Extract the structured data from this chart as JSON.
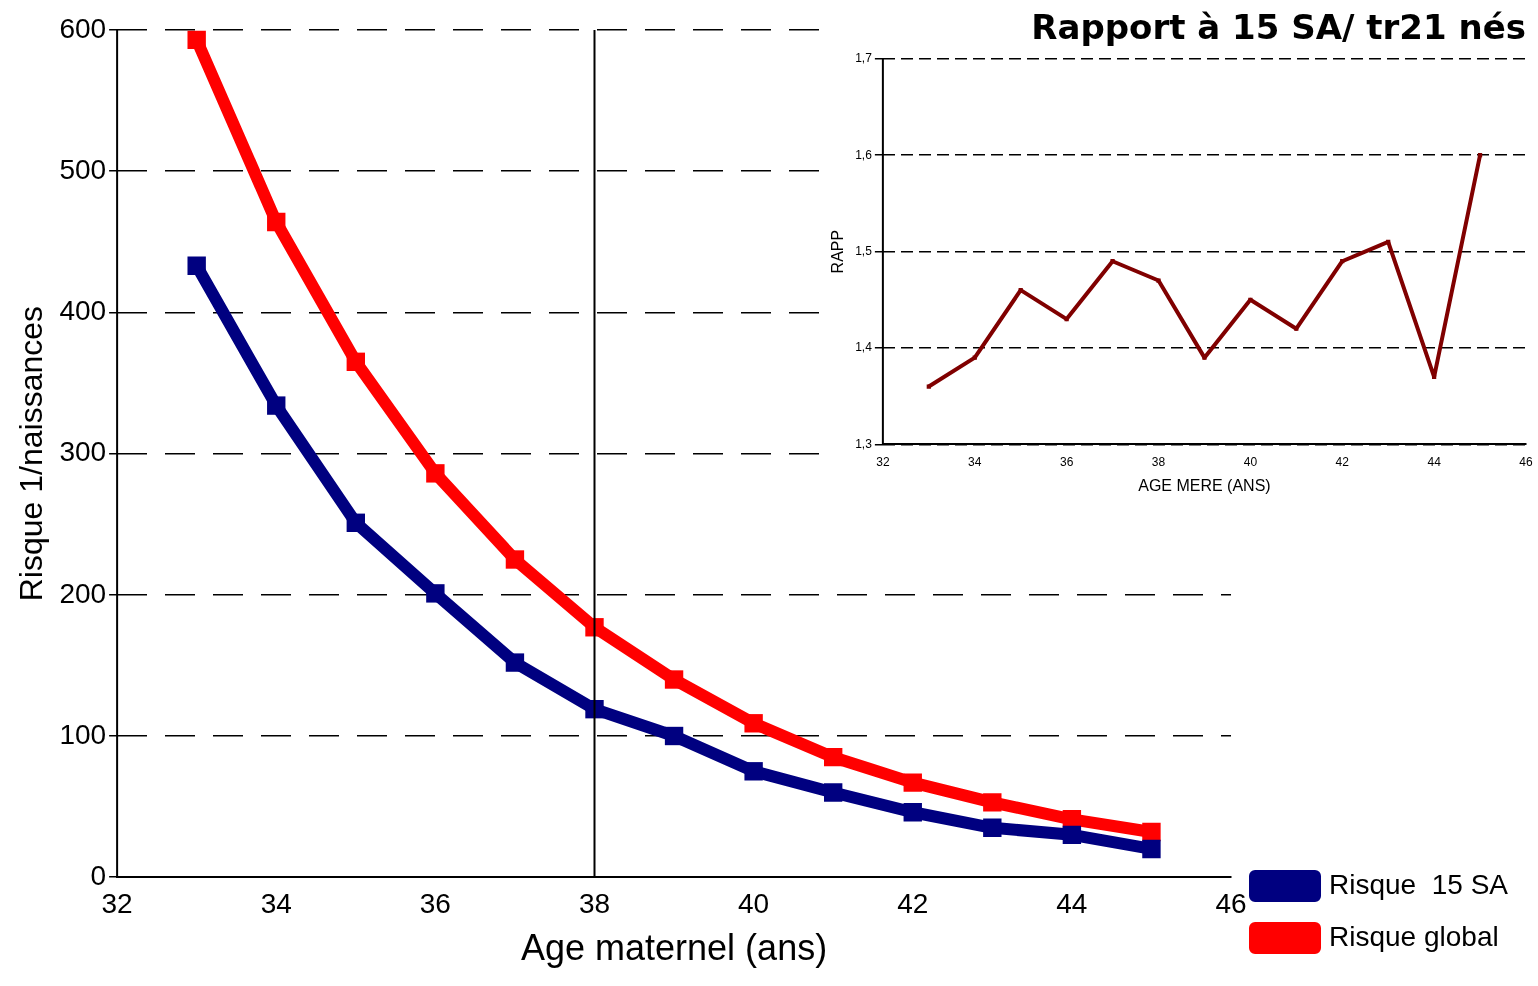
{
  "chart_data": [
    {
      "type": "line",
      "xlabel": "Age maternel (ans)",
      "ylabel": "Risque 1/naissances",
      "x": [
        33,
        34,
        35,
        36,
        37,
        38,
        39,
        40,
        41,
        42,
        43,
        44,
        45
      ],
      "series": [
        {
          "name": "Risque  15 SA",
          "color": "#000080",
          "values": [
            433,
            334,
            251,
            201,
            152,
            119,
            100,
            75,
            60,
            46,
            35,
            30,
            20
          ]
        },
        {
          "name": "Risque global",
          "color": "#ff0000",
          "values": [
            593,
            464,
            365,
            286,
            225,
            177,
            140,
            109,
            85,
            67,
            53,
            41,
            32
          ]
        }
      ],
      "xlim": [
        32,
        46
      ],
      "xticks": [
        32,
        34,
        36,
        38,
        40,
        42,
        44,
        46
      ],
      "ylim": [
        0,
        600
      ],
      "yticks": [
        0,
        100,
        200,
        300,
        400,
        500,
        600
      ],
      "grid": "y",
      "legend": "bottom right",
      "marker": "square",
      "ref_lines": [
        {
          "axis": "x",
          "value": 38,
          "color": "#000000"
        }
      ]
    },
    {
      "type": "line",
      "title": "Rapport à 15 SA/ tr21 nés",
      "xlabel": "AGE MERE (ANS)",
      "ylabel": "RAPP",
      "x": [
        33,
        34,
        35,
        36,
        37,
        38,
        39,
        40,
        41,
        42,
        43,
        44,
        45
      ],
      "series": [
        {
          "color": "#800000",
          "values": [
            1.36,
            1.39,
            1.46,
            1.43,
            1.49,
            1.47,
            1.39,
            1.45,
            1.42,
            1.49,
            1.51,
            1.37,
            1.6
          ]
        }
      ],
      "xlim": [
        32,
        46
      ],
      "xticks": [
        32,
        34,
        36,
        38,
        40,
        42,
        44,
        46
      ],
      "ylim": [
        1.3,
        1.7
      ],
      "yticks": [
        {
          "value": 1.3,
          "label": "1,3"
        },
        {
          "value": 1.4,
          "label": "1,4"
        },
        {
          "value": 1.5,
          "label": "1,5"
        },
        {
          "value": 1.6,
          "label": "1,6"
        },
        {
          "value": 1.7,
          "label": "1,7"
        }
      ],
      "grid": "y",
      "marker": "square"
    }
  ]
}
